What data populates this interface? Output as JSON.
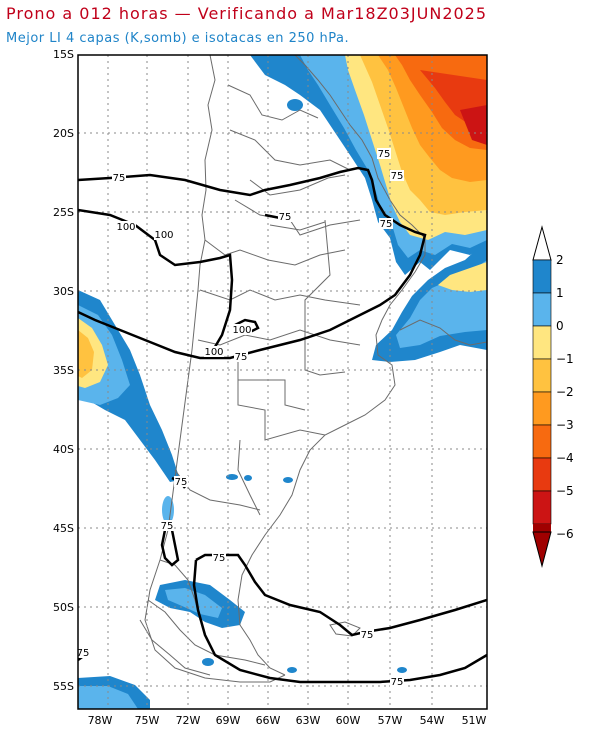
{
  "title": "Prono a 012 horas — Verificando a Mar18Z03JUN2025",
  "subtitle": "Mejor LI 4 capas (K,somb) e isotacas en 250 hPa.",
  "colors": {
    "title": "#c0001a",
    "subtitle": "#1f84c8",
    "deep_blue": "#1f86cc",
    "mid_blue": "#5ab4ec",
    "yellow": "#ffe680",
    "light_orange": "#ffc240",
    "orange": "#ff9a1f",
    "dark_orange": "#f76a10",
    "red_orange": "#e83a10",
    "red": "#cc1414",
    "dark_red": "#a00000",
    "coast": "#6b6b6b",
    "contour": "#000000"
  },
  "map": {
    "lat_labels": [
      "15S",
      "20S",
      "25S",
      "30S",
      "35S",
      "40S",
      "45S",
      "50S",
      "55S"
    ],
    "lon_labels": [
      "78W",
      "75W",
      "72W",
      "69W",
      "66W",
      "63W",
      "60W",
      "57W",
      "54W",
      "51W"
    ],
    "isotach_labels": [
      "75",
      "75",
      "75",
      "75",
      "100",
      "100",
      "75",
      "100",
      "100",
      "75",
      "75",
      "75",
      "75",
      "75",
      "75",
      "75"
    ]
  },
  "colorbar": {
    "labels": [
      "2",
      "1",
      "0",
      "−1",
      "−2",
      "−3",
      "−4",
      "−5",
      "−6"
    ],
    "colors": [
      "#1f86cc",
      "#5ab4ec",
      "#ffe680",
      "#ffc240",
      "#ff9a1f",
      "#f76a10",
      "#e83a10",
      "#cc1414",
      "#a00000"
    ]
  }
}
